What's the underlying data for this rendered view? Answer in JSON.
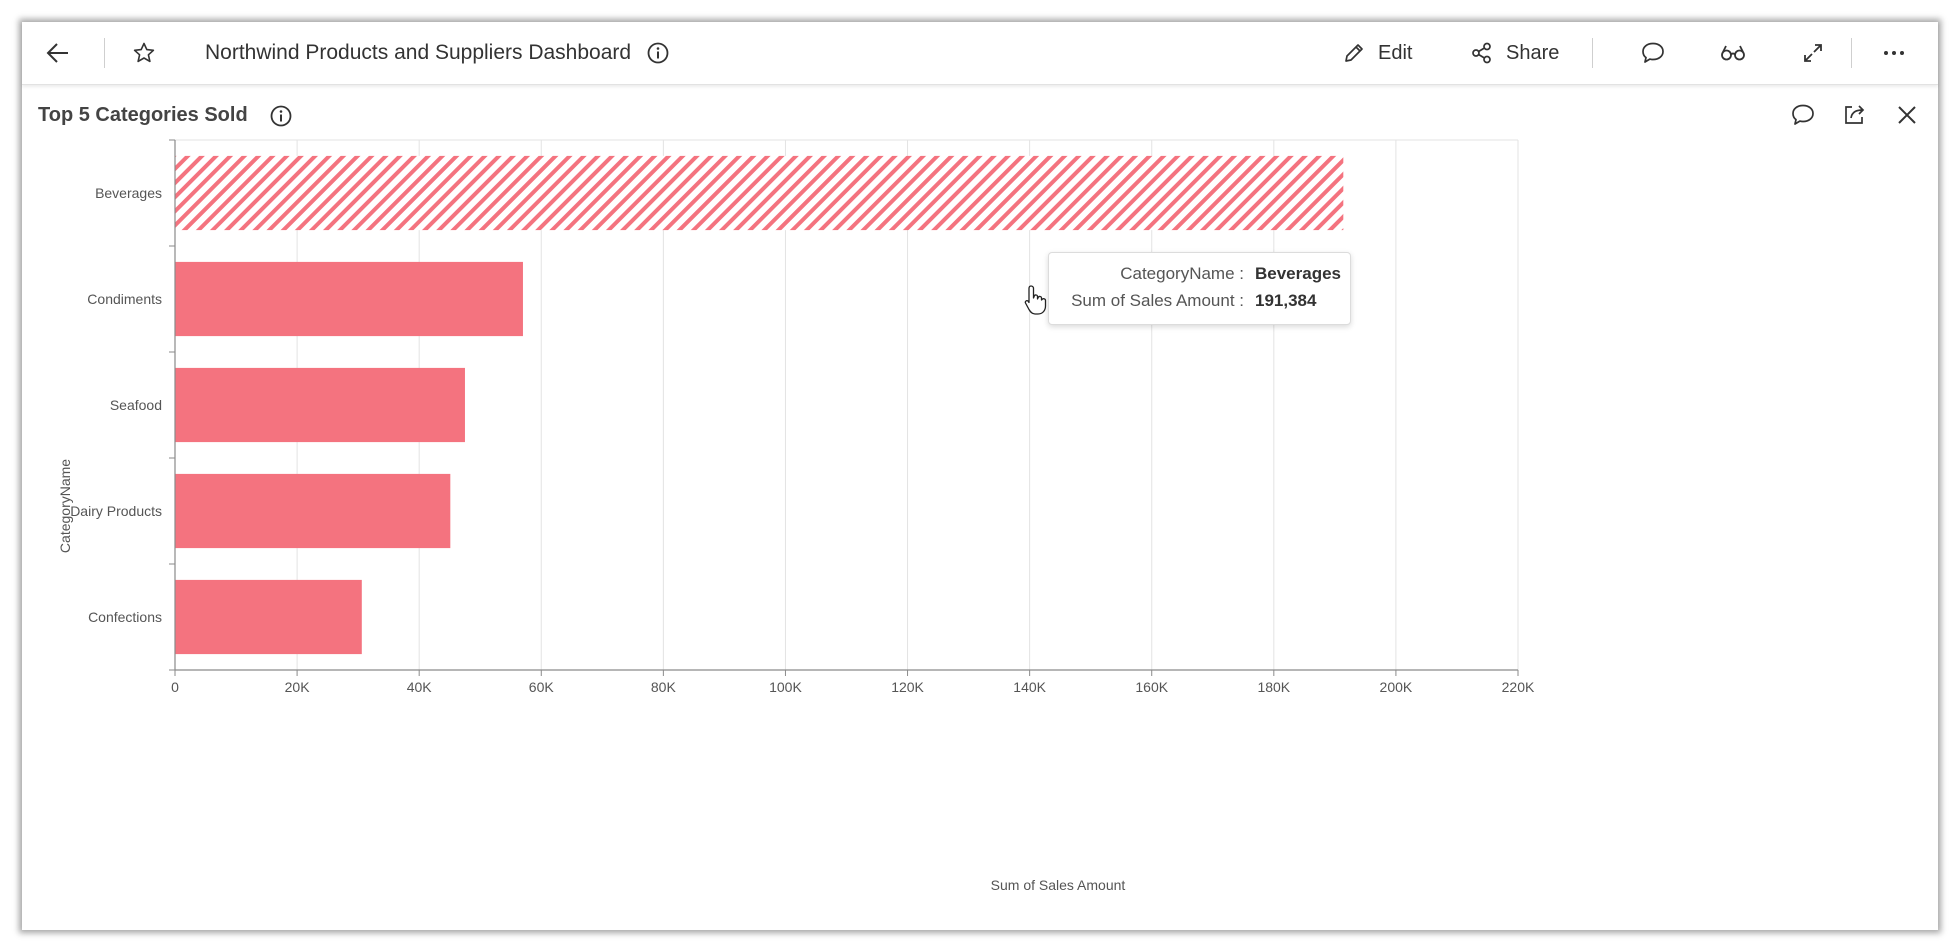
{
  "header": {
    "title": "Northwind Products and Suppliers Dashboard",
    "edit_label": "Edit",
    "share_label": "Share",
    "icons": [
      "back-arrow-icon",
      "star-icon",
      "info-icon",
      "pencil-icon",
      "share-icon",
      "comment-icon",
      "glasses-icon",
      "expand-icon",
      "more-icon"
    ]
  },
  "widget": {
    "title": "Top 5 Categories Sold",
    "icons": [
      "info-icon",
      "comment-icon",
      "export-icon",
      "close-icon"
    ]
  },
  "tooltip": {
    "category_key": "CategoryName :",
    "category_value": "Beverages",
    "amount_key": "Sum of Sales Amount :",
    "amount_value": "191,384"
  },
  "colors": {
    "bar": "#f4737f",
    "bar_hatch": "#f4737f",
    "grid": "#e3e3e3",
    "axis": "#8a8a8a"
  },
  "chart_data": {
    "type": "bar",
    "orientation": "horizontal",
    "categories": [
      "Beverages",
      "Condiments",
      "Seafood",
      "Dairy Products",
      "Confections"
    ],
    "values": [
      191384,
      57000,
      47500,
      45100,
      30600
    ],
    "highlighted": "Beverages",
    "xlabel": "Sum of Sales Amount",
    "ylabel": "CategoryName",
    "xlim": [
      0,
      220000
    ],
    "xticks": [
      "0",
      "20K",
      "40K",
      "60K",
      "80K",
      "100K",
      "120K",
      "140K",
      "160K",
      "180K",
      "200K",
      "220K"
    ],
    "grid": true,
    "legend": "none"
  }
}
